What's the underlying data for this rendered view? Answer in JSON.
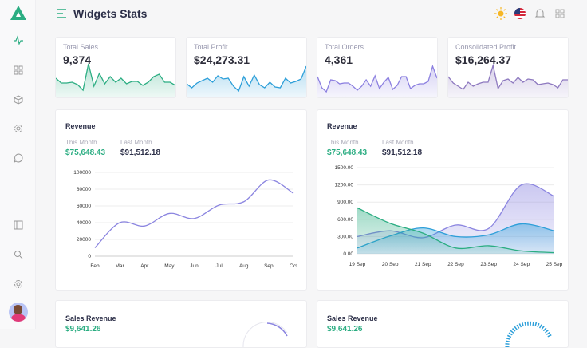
{
  "header": {
    "title": "Widgets Stats"
  },
  "sidebar": {
    "items": [
      "activity-icon",
      "grid-icon",
      "box-icon",
      "settings-icon",
      "chat-icon",
      "sidebar-icon",
      "search-icon",
      "gear-icon"
    ]
  },
  "stats": [
    {
      "label": "Total Sales",
      "value": "9,374",
      "color": "#2bad82",
      "spark": [
        40,
        28,
        28,
        30,
        24,
        10,
        76,
        20,
        52,
        26,
        44,
        30,
        40,
        26,
        32,
        32,
        22,
        30,
        44,
        50,
        30,
        30,
        22
      ]
    },
    {
      "label": "Total Profit",
      "value": "$24,273.31",
      "color": "#2d9fd9",
      "spark": [
        26,
        16,
        28,
        34,
        40,
        30,
        46,
        38,
        40,
        20,
        8,
        44,
        20,
        48,
        24,
        16,
        30,
        18,
        16,
        40,
        28,
        32,
        38,
        70
      ]
    },
    {
      "label": "Total Orders",
      "value": "4,361",
      "color": "#8b7fe0",
      "spark": [
        44,
        16,
        6,
        36,
        34,
        26,
        28,
        28,
        20,
        10,
        20,
        36,
        20,
        46,
        14,
        30,
        42,
        12,
        22,
        44,
        44,
        14,
        22,
        26,
        26,
        32,
        70,
        40
      ]
    },
    {
      "label": "Consolidated Profit",
      "value": "$16,264.37",
      "color": "#8d78bf",
      "spark": [
        44,
        28,
        20,
        12,
        30,
        20,
        26,
        30,
        30,
        72,
        14,
        34,
        38,
        28,
        42,
        30,
        38,
        36,
        24,
        26,
        28,
        24,
        16,
        36,
        36
      ]
    }
  ],
  "revenue_left": {
    "title": "Revenue",
    "this_month_label": "This Month",
    "this_month": "$75,648.43",
    "last_month_label": "Last Month",
    "last_month": "$91,512.18"
  },
  "revenue_right": {
    "title": "Revenue",
    "this_month_label": "This Month",
    "this_month": "$75,648.43",
    "last_month_label": "Last Month",
    "last_month": "$91,512.18"
  },
  "sales_left": {
    "title": "Sales Revenue",
    "value": "$9,641.26"
  },
  "sales_right": {
    "title": "Sales Revenue",
    "value": "$9,641.26"
  },
  "colors": {
    "accent": "#2bad82",
    "purple": "#8b85e0",
    "blue": "#2d9fd9",
    "green": "#2bad82"
  },
  "chart_data": [
    {
      "type": "line",
      "categories": [
        "Feb",
        "Mar",
        "Apr",
        "May",
        "Jun",
        "Jul",
        "Aug",
        "Sep",
        "Oct"
      ],
      "values": [
        10000,
        40000,
        36000,
        51000,
        45000,
        61000,
        65000,
        91000,
        75000
      ],
      "yticks": [
        "0",
        "20000",
        "40000",
        "60000",
        "80000",
        "100000"
      ],
      "ylim": [
        0,
        100000
      ],
      "grid": true
    },
    {
      "type": "area",
      "categories": [
        "19 Sep",
        "20 Sep",
        "21 Sep",
        "22 Sep",
        "23 Sep",
        "24 Sep",
        "25 Sep"
      ],
      "yticks": [
        "0.00",
        "300.00",
        "600.00",
        "900.00",
        "1200.00",
        "1500.00"
      ],
      "ylim": [
        0,
        1500
      ],
      "grid": true,
      "series": [
        {
          "values": [
            300,
            400,
            280,
            500,
            440,
            1200,
            1000
          ],
          "color": "#8b85e0"
        },
        {
          "values": [
            100,
            310,
            450,
            300,
            330,
            520,
            400
          ],
          "color": "#2d9fd9"
        },
        {
          "values": [
            800,
            530,
            360,
            100,
            140,
            50,
            20
          ],
          "color": "#2bad82"
        }
      ]
    }
  ]
}
